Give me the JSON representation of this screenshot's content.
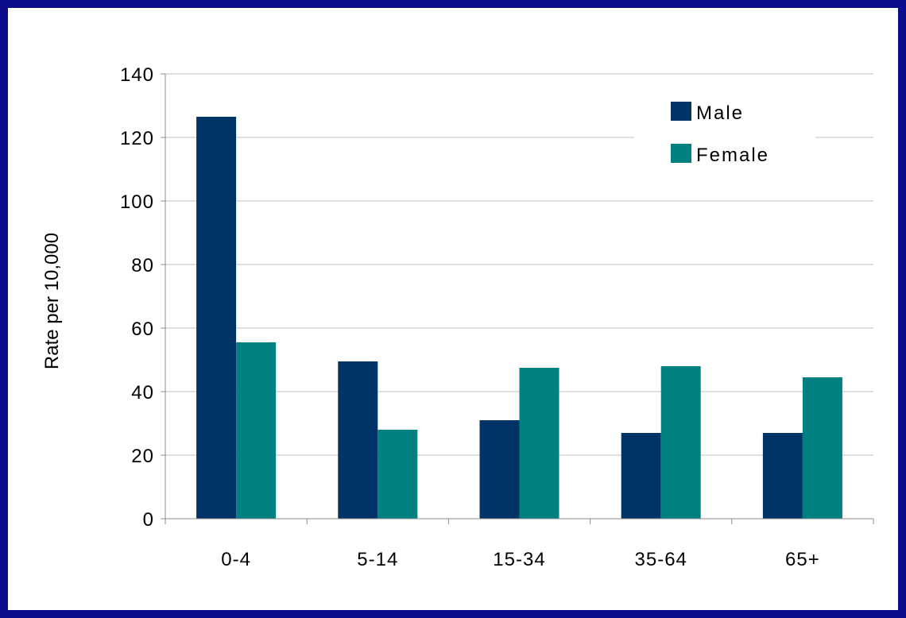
{
  "chart_data": {
    "type": "bar",
    "title": "",
    "xlabel": "",
    "ylabel": "Rate per 10,000",
    "categories": [
      "0-4",
      "5-14",
      "15-34",
      "35-64",
      "65+"
    ],
    "series": [
      {
        "name": "Male",
        "color": "#003366",
        "values": [
          126.5,
          49.5,
          31,
          27,
          27
        ]
      },
      {
        "name": "Female",
        "color": "#008080",
        "values": [
          55.5,
          28,
          47.5,
          48,
          44.5
        ]
      }
    ],
    "ylim": [
      0,
      140
    ],
    "yticks": [
      0,
      20,
      40,
      60,
      80,
      100,
      120,
      140
    ],
    "grid": true,
    "legend": "top-right"
  }
}
